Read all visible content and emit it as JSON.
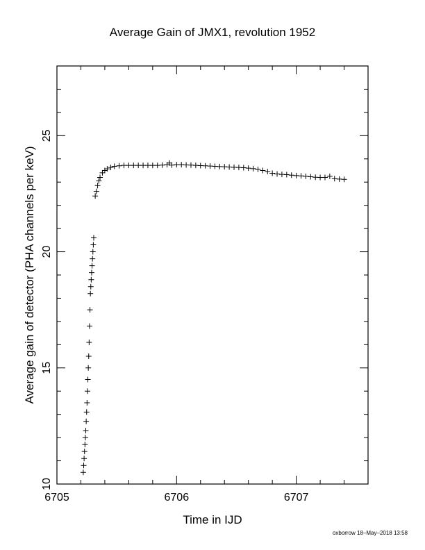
{
  "chart_data": {
    "type": "scatter",
    "title": "Average Gain of JMX1, revolution 1952",
    "x_label": "Time in IJD",
    "y_label": "Average gain of detector (PHA channels per keV)",
    "footer": "oxborrow 18–May–2018 13:58",
    "marker": "+",
    "color": "#000000",
    "xlim": [
      6705,
      6707.6
    ],
    "ylim": [
      10,
      28
    ],
    "xticks": [
      6705,
      6706,
      6707
    ],
    "yticks": [
      10,
      15,
      20,
      25
    ],
    "xminorticks": [
      6705.2,
      6705.4,
      6705.6,
      6705.8,
      6706.2,
      6706.4,
      6706.6,
      6706.8,
      6707.2,
      6707.4
    ],
    "yminorticks": [
      11,
      12,
      13,
      14,
      16,
      17,
      18,
      19,
      21,
      22,
      23,
      24,
      26,
      27
    ],
    "x": [
      6705.22,
      6705.2235,
      6705.227,
      6705.2305,
      6705.234,
      6705.2375,
      6705.241,
      6705.2445,
      6705.248,
      6705.2515,
      6705.255,
      6705.2585,
      6705.262,
      6705.2655,
      6705.269,
      6705.2725,
      6705.276,
      6705.2795,
      6705.283,
      6705.2865,
      6705.29,
      6705.2935,
      6705.297,
      6705.3005,
      6705.304,
      6705.3075,
      6705.32,
      6705.33,
      6705.34,
      6705.35,
      6705.36,
      6705.38,
      6705.4,
      6705.42,
      6705.45,
      6705.48,
      6705.52,
      6705.56,
      6705.6,
      6705.64,
      6705.68,
      6705.72,
      6705.76,
      6705.8,
      6705.84,
      6705.88,
      6705.92,
      6705.94,
      6705.96,
      6706.0,
      6706.04,
      6706.08,
      6706.12,
      6706.16,
      6706.2,
      6706.24,
      6706.28,
      6706.32,
      6706.36,
      6706.4,
      6706.44,
      6706.48,
      6706.52,
      6706.56,
      6706.6,
      6706.64,
      6706.68,
      6706.72,
      6706.76,
      6706.8,
      6706.84,
      6706.88,
      6706.92,
      6706.96,
      6707.0,
      6707.04,
      6707.08,
      6707.12,
      6707.16,
      6707.2,
      6707.24,
      6707.28,
      6707.32,
      6707.36,
      6707.4
    ],
    "values": [
      10.5,
      10.8,
      11.1,
      11.4,
      11.7,
      12.0,
      12.3,
      12.7,
      13.1,
      13.5,
      14.0,
      14.5,
      15.0,
      15.5,
      16.1,
      16.8,
      17.5,
      18.2,
      18.5,
      18.8,
      19.1,
      19.4,
      19.7,
      20.0,
      20.3,
      20.6,
      22.4,
      22.6,
      22.85,
      23.05,
      23.2,
      23.4,
      23.5,
      23.57,
      23.63,
      23.68,
      23.7,
      23.72,
      23.72,
      23.72,
      23.72,
      23.72,
      23.72,
      23.72,
      23.72,
      23.73,
      23.75,
      23.82,
      23.73,
      23.75,
      23.75,
      23.74,
      23.73,
      23.72,
      23.71,
      23.7,
      23.69,
      23.68,
      23.67,
      23.66,
      23.65,
      23.64,
      23.63,
      23.62,
      23.6,
      23.58,
      23.55,
      23.5,
      23.45,
      23.38,
      23.35,
      23.33,
      23.32,
      23.3,
      23.28,
      23.27,
      23.25,
      23.23,
      23.21,
      23.2,
      23.2,
      23.25,
      23.15,
      23.13,
      23.12
    ]
  }
}
